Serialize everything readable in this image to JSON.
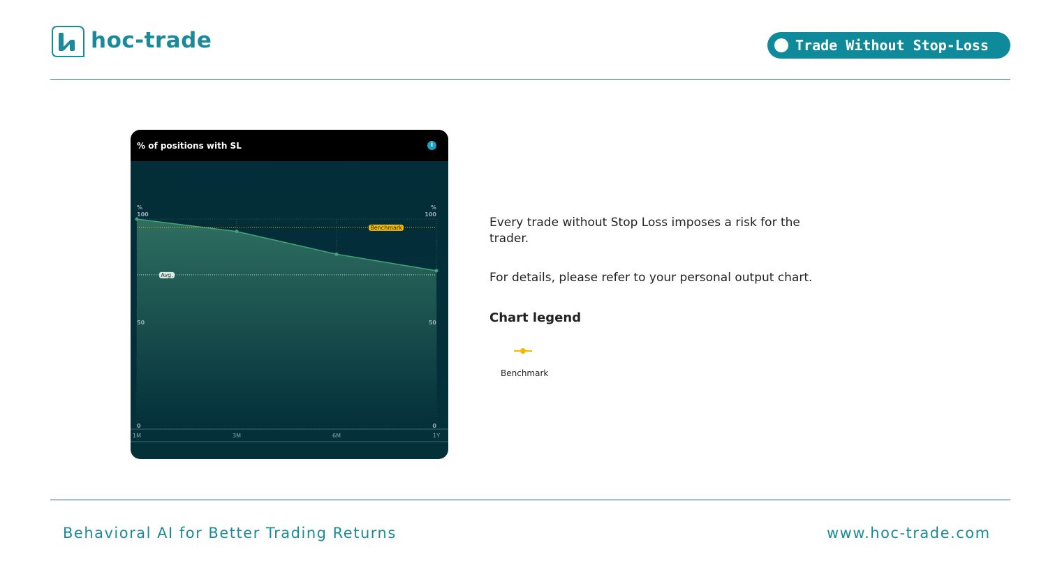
{
  "header": {
    "brand": "hoc-trade",
    "badge": "Trade Without Stop-Loss"
  },
  "card": {
    "title": "% of positions with SL",
    "info_icon": "info-icon"
  },
  "chart_data": {
    "type": "area",
    "title": "% of positions with SL",
    "categories": [
      "1M",
      "3M",
      "6M",
      "1Y"
    ],
    "values": [
      100,
      94,
      83,
      75
    ],
    "y_unit": "%",
    "y_ticks": [
      0,
      50,
      100
    ],
    "ylim": [
      0,
      100
    ],
    "benchmark": {
      "label": "Benchmark",
      "value": 96,
      "color": "#f5b800"
    },
    "average": {
      "label": "Avg.",
      "value": 73
    },
    "series_color": "#3fa57a",
    "grid": true
  },
  "text": {
    "p1": "Every trade without Stop Loss imposes a risk for the trader.",
    "p2": "For details, please refer to your personal output chart.",
    "legend_title": "Chart legend",
    "legend_item": "Benchmark"
  },
  "footer": {
    "tagline": "Behavioral AI for Better Trading Returns",
    "url": "www.hoc-trade.com"
  }
}
